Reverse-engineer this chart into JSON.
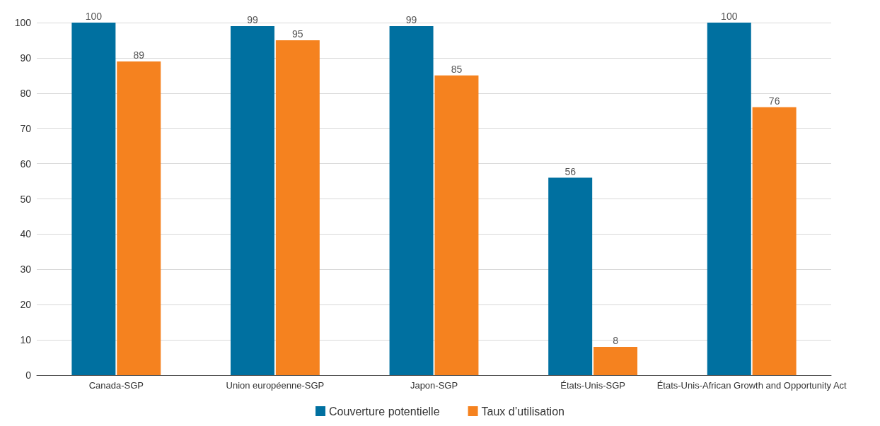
{
  "chart_data": {
    "type": "bar",
    "categories": [
      "Canada-SGP",
      "Union européenne-SGP",
      "Japon-SGP",
      "États-Unis-SGP",
      "États-Unis-African Growth and Opportunity Act"
    ],
    "series": [
      {
        "name": "Couverture potentielle",
        "color": "#0070a0",
        "values": [
          100,
          99,
          99,
          56,
          100
        ]
      },
      {
        "name": "Taux d’utilisation",
        "color": "#f5821f",
        "values": [
          89,
          95,
          85,
          8,
          76
        ]
      }
    ],
    "ylim": [
      0,
      100
    ],
    "yticks": [
      0,
      10,
      20,
      30,
      40,
      50,
      60,
      70,
      80,
      90,
      100
    ],
    "grid": "y",
    "legend": "bottom",
    "data_labels": true
  }
}
